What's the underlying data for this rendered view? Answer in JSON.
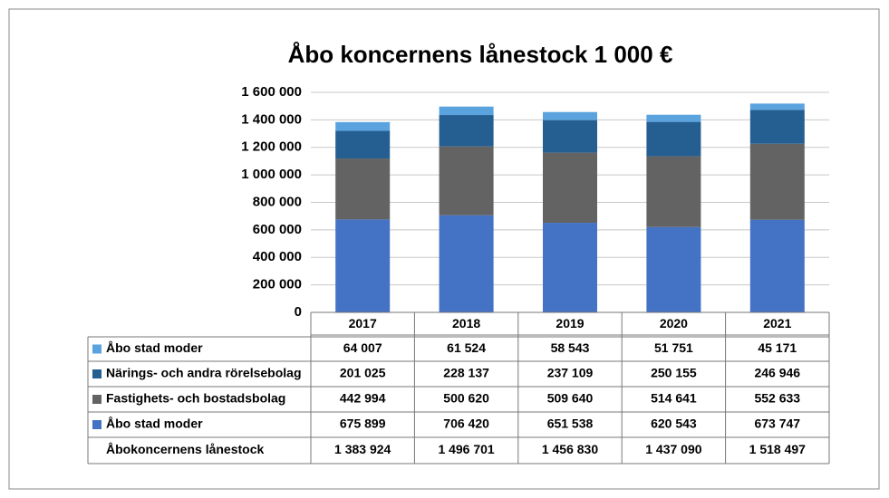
{
  "chart_data": {
    "type": "stacked_bar",
    "title": "Åbo koncernens lånestock 1 000 €",
    "categories": [
      "2017",
      "2018",
      "2019",
      "2020",
      "2021"
    ],
    "series": [
      {
        "name": "Åbo stad moder",
        "color": "#4472c4",
        "values": [
          675899,
          706420,
          651538,
          620543,
          673747
        ],
        "value_labels": [
          "675 899",
          "706 420",
          "651 538",
          "620 543",
          "673 747"
        ]
      },
      {
        "name": "Fastighets- och bostadsbolag",
        "color": "#636363",
        "values": [
          442994,
          500620,
          509640,
          514641,
          552633
        ],
        "value_labels": [
          "442 994",
          "500 620",
          "509 640",
          "514 641",
          "552 633"
        ]
      },
      {
        "name": "Närings- och andra rörelsebolag",
        "color": "#255e91",
        "values": [
          201025,
          228137,
          237109,
          250155,
          246946
        ],
        "value_labels": [
          "201 025",
          "228 137",
          "237 109",
          "250 155",
          "246 946"
        ]
      },
      {
        "name": "Åbo stad moder",
        "color": "#5ba3de",
        "values": [
          64007,
          61524,
          58543,
          51751,
          45171
        ],
        "value_labels": [
          "64 007",
          "61 524",
          "58 543",
          "51 751",
          "45 171"
        ]
      }
    ],
    "total": {
      "name": "Åbokoncernens lånestock",
      "values": [
        1383924,
        1496701,
        1456830,
        1437090,
        1518497
      ],
      "value_labels": [
        "1 383 924",
        "1 496 701",
        "1 456 830",
        "1 437 090",
        "1 518 497"
      ]
    },
    "ylim": [
      0,
      1600000
    ],
    "yticks": [
      0,
      {
        "value": 200000,
        "label": "200 000"
      },
      {
        "value": 400000,
        "label": "400 000"
      },
      {
        "value": 600000,
        "label": "600 000"
      },
      {
        "value": 800000,
        "label": "800 000"
      },
      {
        "value": 1000000,
        "label": "1 000 000"
      },
      {
        "value": 1200000,
        "label": "1 200 000"
      },
      {
        "value": 1400000,
        "label": "1 400 000"
      },
      {
        "value": 1600000,
        "label": "1 600 000"
      }
    ],
    "grid": true
  }
}
